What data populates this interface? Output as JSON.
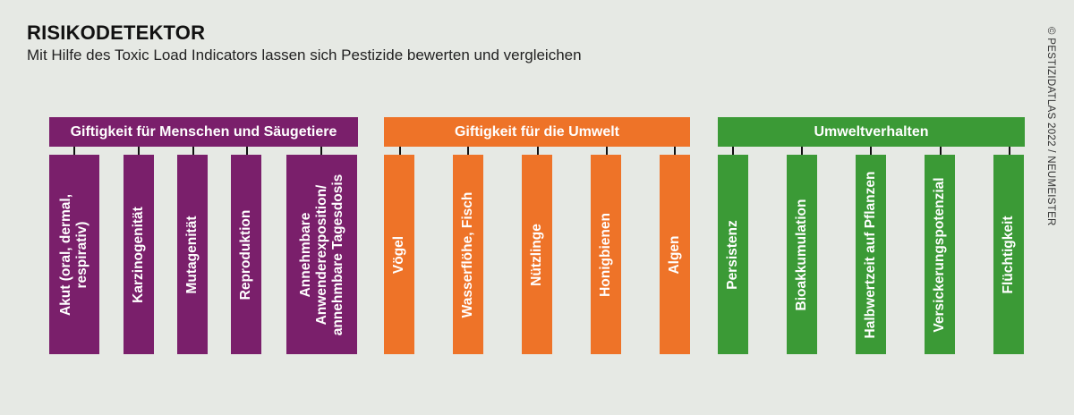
{
  "title": "RISIKODETEKTOR",
  "subtitle": "Mit Hilfe des Toxic Load Indicators lassen sich Pestizide bewerten und vergleichen",
  "credit": "© PESTIZIDATLAS 2022 / NEUMEISTER",
  "colors": {
    "purple": "#7a1f6b",
    "orange": "#ee7328",
    "green": "#3b9a36",
    "background": "#e6e9e4"
  },
  "groups": [
    {
      "label": "Giftigkeit für Menschen und Säugetiere",
      "color": "#7a1f6b",
      "items": [
        {
          "label": "Akut (oral, dermal,\nrespirativ)"
        },
        {
          "label": "Karzinogenität"
        },
        {
          "label": "Mutagenität"
        },
        {
          "label": "Reproduktion"
        },
        {
          "label": "Annehmbare\nAnwenderexposition/\nannehmbare Tagesdosis"
        }
      ]
    },
    {
      "label": "Giftigkeit für die Umwelt",
      "color": "#ee7328",
      "items": [
        {
          "label": "Vögel"
        },
        {
          "label": "Wasserflöhe, Fisch"
        },
        {
          "label": "Nützlinge"
        },
        {
          "label": "Honigbienen"
        },
        {
          "label": "Algen"
        }
      ]
    },
    {
      "label": "Umweltverhalten",
      "color": "#3b9a36",
      "items": [
        {
          "label": "Persistenz"
        },
        {
          "label": "Bioakkumulation"
        },
        {
          "label": "Halbwertzeit auf Pflanzen"
        },
        {
          "label": "Versickerungspotenzial"
        },
        {
          "label": "Flüchtigkeit"
        }
      ]
    }
  ]
}
